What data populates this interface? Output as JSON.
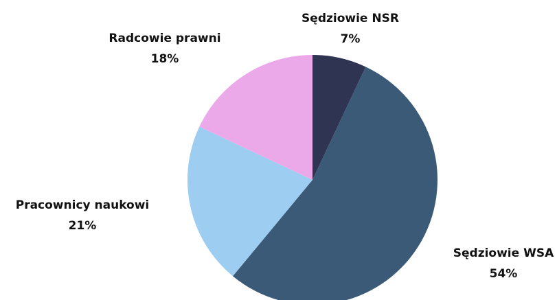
{
  "chart_data": {
    "type": "pie",
    "categories": [
      "Sędziowie NSR",
      "Sędziowie WSA",
      "Pracownicy naukowi",
      "Radcowie prawni"
    ],
    "values": [
      7,
      54,
      21,
      18
    ],
    "value_labels": [
      "7%",
      "54%",
      "21%",
      "18%"
    ],
    "colors": [
      "#2f3452",
      "#3a5a78",
      "#9dcdf1",
      "#eba9e9"
    ]
  }
}
